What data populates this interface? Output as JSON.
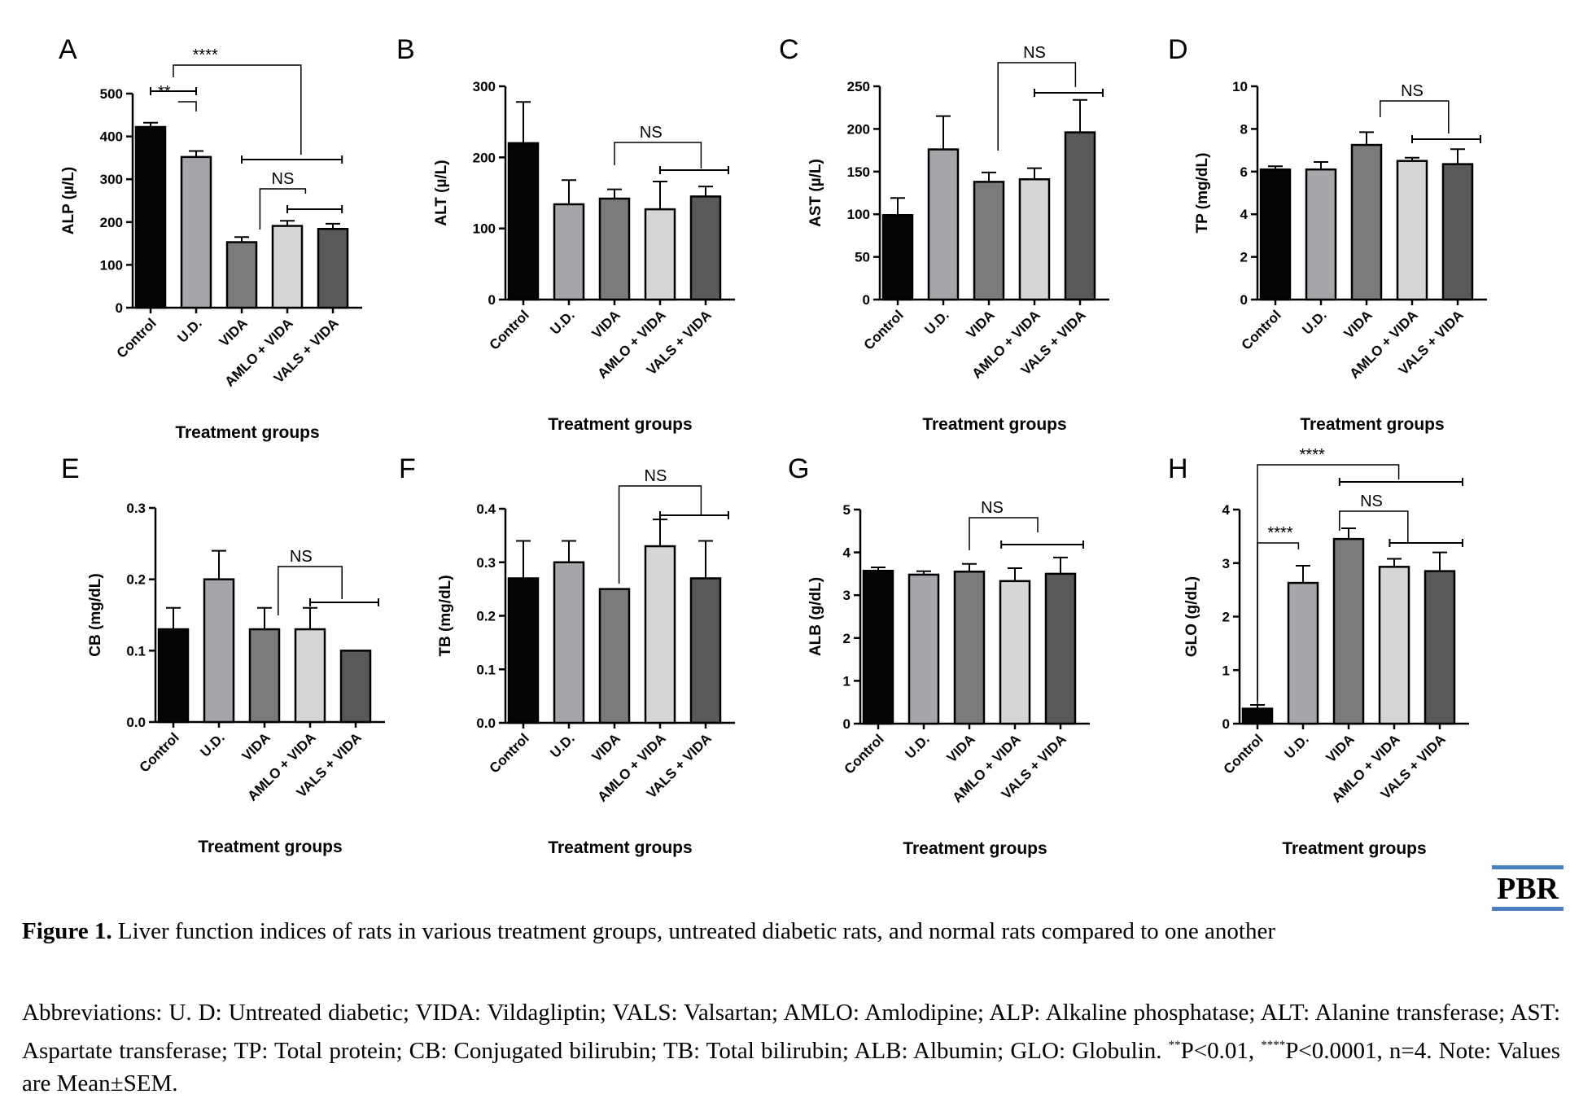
{
  "groups": [
    "Control",
    "U.D.",
    "VIDA",
    "AMLO + VIDA",
    "VALS + VIDA"
  ],
  "colors": [
    "#050505",
    "#a5a5aa",
    "#7b7b7d",
    "#d6d6d6",
    "#595959"
  ],
  "chart_data": [
    {
      "letter": "A",
      "type": "bar",
      "ylabel": "ALP (µ/L)",
      "xlabel": "Treatment groups",
      "ylim": [
        0,
        500
      ],
      "yticks": [
        0,
        100,
        200,
        300,
        400,
        500
      ],
      "values": [
        422,
        352,
        153,
        191,
        184
      ],
      "errors": [
        10,
        14,
        12,
        12,
        12
      ],
      "annotations": [
        "**",
        "****",
        "NS"
      ]
    },
    {
      "letter": "B",
      "type": "bar",
      "ylabel": "ALT (µ/L)",
      "xlabel": "Treatment groups",
      "ylim": [
        0,
        300
      ],
      "yticks": [
        0,
        100,
        200,
        300
      ],
      "values": [
        220,
        134,
        142,
        127,
        145
      ],
      "errors": [
        58,
        34,
        13,
        39,
        14
      ],
      "annotations": [
        "NS"
      ]
    },
    {
      "letter": "C",
      "type": "bar",
      "ylabel": "AST (µ/L)",
      "xlabel": "Treatment groups",
      "ylim": [
        0,
        250
      ],
      "yticks": [
        0,
        50,
        100,
        150,
        200,
        250
      ],
      "values": [
        99,
        176,
        138,
        141,
        196
      ],
      "errors": [
        20,
        39,
        11,
        13,
        38
      ],
      "annotations": [
        "NS"
      ]
    },
    {
      "letter": "D",
      "type": "bar",
      "ylabel": "TP (mg/dL)",
      "xlabel": "Treatment groups",
      "ylim": [
        0,
        10
      ],
      "yticks": [
        0,
        2,
        4,
        6,
        8,
        10
      ],
      "values": [
        6.1,
        6.1,
        7.25,
        6.5,
        6.35
      ],
      "errors": [
        0.15,
        0.35,
        0.6,
        0.15,
        0.7
      ],
      "annotations": [
        "NS"
      ]
    },
    {
      "letter": "E",
      "type": "bar",
      "ylabel": "CB (mg/dL)",
      "xlabel": "Treatment groups",
      "ylim": [
        0,
        0.3
      ],
      "yticks": [
        "0.0",
        "0.1",
        "0.2",
        "0.3"
      ],
      "values": [
        0.13,
        0.2,
        0.13,
        0.13,
        0.1
      ],
      "errors": [
        0.03,
        0.04,
        0.03,
        0.03,
        0
      ],
      "annotations": [
        "NS"
      ]
    },
    {
      "letter": "F",
      "type": "bar",
      "ylabel": "TB (mg/dL)",
      "xlabel": "Treatment groups",
      "ylim": [
        0,
        0.4
      ],
      "yticks": [
        "0.0",
        "0.1",
        "0.2",
        "0.3",
        "0.4"
      ],
      "values": [
        0.27,
        0.3,
        0.25,
        0.33,
        0.27
      ],
      "errors": [
        0.07,
        0.04,
        0,
        0.05,
        0.07
      ],
      "annotations": [
        "NS"
      ]
    },
    {
      "letter": "G",
      "type": "bar",
      "ylabel": "ALB (g/dL)",
      "xlabel": "Treatment groups",
      "ylim": [
        0,
        5
      ],
      "yticks": [
        0,
        1,
        2,
        3,
        4,
        5
      ],
      "values": [
        3.57,
        3.48,
        3.55,
        3.33,
        3.5
      ],
      "errors": [
        0.08,
        0.08,
        0.18,
        0.3,
        0.38
      ],
      "annotations": [
        "NS"
      ]
    },
    {
      "letter": "H",
      "type": "bar",
      "ylabel": "GLO (g/dL)",
      "xlabel": "Treatment groups",
      "ylim": [
        0,
        4
      ],
      "yticks": [
        0,
        1,
        2,
        3,
        4
      ],
      "values": [
        0.28,
        2.63,
        3.45,
        2.93,
        2.85
      ],
      "errors": [
        0.07,
        0.32,
        0.2,
        0.15,
        0.35
      ],
      "annotations": [
        "****",
        "****",
        "NS"
      ]
    }
  ],
  "logo": "PBR",
  "caption": {
    "label": "Figure 1.",
    "text": " Liver function indices of rats in various treatment groups, untreated diabetic rats, and normal rats compared to one another",
    "abbr_text": "Abbreviations: U. D: Untreated diabetic; VIDA: Vildagliptin; VALS: Valsartan; AMLO: Amlodipine; ALP: Alkaline phosphatase; ALT: Alanine transferase; AST: Aspartate transferase; TP: Total protein; CB: Conjugated bilirubin; TB: Total bilirubin; ALB: Albumin; GLO: Globulin.",
    "sup1": "**",
    "p1": "P<0.01, ",
    "sup2": "****",
    "p2": "P<0.0001, n=4. Note: Values are Mean±SEM."
  }
}
